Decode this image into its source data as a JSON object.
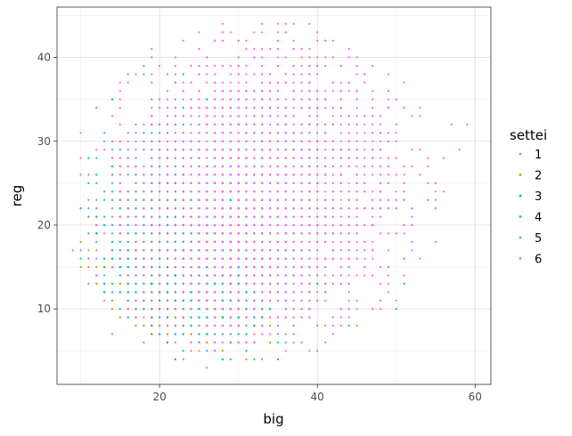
{
  "chart_data": {
    "type": "scatter",
    "title": "",
    "xlabel": "big",
    "ylabel": "reg",
    "xlim": [
      7,
      62
    ],
    "ylim": [
      1,
      46
    ],
    "x_ticks": [
      20,
      40,
      60
    ],
    "x_tick_labels": [
      "20",
      "40",
      "60"
    ],
    "x_minor_ticks": [
      10,
      30,
      50
    ],
    "y_ticks": [
      10,
      20,
      30,
      40
    ],
    "y_tick_labels": [
      "10",
      "20",
      "30",
      "40"
    ],
    "y_minor_ticks": [
      5,
      15,
      25,
      35,
      45
    ],
    "grid": true,
    "legend": {
      "title": "settei",
      "position": "right",
      "entries": [
        "1",
        "2",
        "3",
        "4",
        "5",
        "6"
      ],
      "colors": [
        "#F8766D",
        "#B79F00",
        "#00BA38",
        "#00BFC4",
        "#619CFF",
        "#F564E3"
      ]
    },
    "series": [
      {
        "name": "1",
        "color": "#F8766D",
        "center": [
          26,
          16
        ],
        "spread": [
          5,
          4
        ],
        "points": [
          [
            9,
            17
          ],
          [
            11,
            13
          ],
          [
            11,
            15
          ],
          [
            12,
            14
          ],
          [
            12,
            20
          ],
          [
            13,
            11
          ],
          [
            14,
            7
          ],
          [
            14,
            18
          ],
          [
            15,
            12
          ],
          [
            15,
            16
          ],
          [
            16,
            9
          ],
          [
            16,
            14
          ],
          [
            17,
            13
          ],
          [
            18,
            10
          ],
          [
            18,
            15
          ],
          [
            19,
            12
          ],
          [
            20,
            8
          ],
          [
            20,
            17
          ],
          [
            21,
            11
          ],
          [
            22,
            14
          ],
          [
            23,
            9
          ],
          [
            24,
            13
          ],
          [
            26,
            3
          ],
          [
            26,
            16
          ],
          [
            27,
            8
          ],
          [
            28,
            12
          ],
          [
            29,
            18
          ],
          [
            30,
            10
          ],
          [
            31,
            6
          ],
          [
            33,
            14
          ],
          [
            35,
            9
          ],
          [
            38,
            11
          ],
          [
            41,
            8
          ],
          [
            44,
            12
          ],
          [
            47,
            10
          ],
          [
            49,
            14
          ]
        ]
      },
      {
        "name": "2",
        "color": "#B79F00",
        "center": [
          25,
          13
        ],
        "spread": [
          5,
          4
        ],
        "points": [
          [
            11,
            16
          ],
          [
            12,
            19
          ],
          [
            12,
            13
          ],
          [
            13,
            12
          ],
          [
            13,
            24
          ],
          [
            14,
            15
          ],
          [
            14,
            10
          ],
          [
            15,
            13
          ],
          [
            15,
            9
          ],
          [
            16,
            11
          ],
          [
            17,
            8
          ],
          [
            17,
            14
          ],
          [
            18,
            6
          ],
          [
            18,
            12
          ],
          [
            19,
            9
          ],
          [
            19,
            16
          ],
          [
            20,
            11
          ],
          [
            21,
            7
          ],
          [
            21,
            13
          ],
          [
            22,
            10
          ],
          [
            23,
            4
          ],
          [
            23,
            15
          ],
          [
            24,
            8
          ],
          [
            25,
            12
          ],
          [
            25,
            6
          ],
          [
            26,
            10
          ],
          [
            27,
            5
          ],
          [
            28,
            13
          ],
          [
            29,
            8
          ],
          [
            30,
            11
          ],
          [
            31,
            4
          ],
          [
            32,
            9
          ],
          [
            34,
            12
          ],
          [
            36,
            7
          ],
          [
            38,
            10
          ],
          [
            40,
            5
          ],
          [
            42,
            9
          ],
          [
            45,
            8
          ],
          [
            48,
            11
          ]
        ]
      },
      {
        "name": "3",
        "color": "#00BA38",
        "center": [
          24,
          17
        ],
        "spread": [
          5,
          5
        ],
        "points": [
          [
            12,
            18
          ],
          [
            12,
            22
          ],
          [
            13,
            16
          ],
          [
            14,
            27
          ],
          [
            14,
            20
          ],
          [
            15,
            14
          ],
          [
            15,
            23
          ],
          [
            16,
            12
          ],
          [
            16,
            19
          ],
          [
            17,
            25
          ],
          [
            17,
            16
          ],
          [
            18,
            11
          ],
          [
            18,
            21
          ],
          [
            19,
            14
          ],
          [
            19,
            28
          ],
          [
            20,
            18
          ],
          [
            20,
            10
          ],
          [
            21,
            15
          ],
          [
            21,
            22
          ],
          [
            22,
            12
          ],
          [
            22,
            4
          ],
          [
            23,
            17
          ],
          [
            23,
            9
          ],
          [
            24,
            13
          ],
          [
            24,
            20
          ],
          [
            25,
            7
          ],
          [
            25,
            15
          ],
          [
            26,
            11
          ],
          [
            27,
            18
          ],
          [
            28,
            9
          ],
          [
            29,
            14
          ],
          [
            30,
            6
          ],
          [
            31,
            12
          ],
          [
            33,
            10
          ],
          [
            35,
            15
          ],
          [
            37,
            8
          ],
          [
            40,
            13
          ],
          [
            44,
            10
          ]
        ]
      },
      {
        "name": "4",
        "color": "#00BFC4",
        "center": [
          25,
          18
        ],
        "spread": [
          6,
          6
        ],
        "points": [
          [
            13,
            20
          ],
          [
            14,
            24
          ],
          [
            14,
            17
          ],
          [
            15,
            22
          ],
          [
            15,
            28
          ],
          [
            16,
            19
          ],
          [
            16,
            13
          ],
          [
            17,
            26
          ],
          [
            17,
            21
          ],
          [
            18,
            15
          ],
          [
            18,
            30
          ],
          [
            19,
            23
          ],
          [
            19,
            18
          ],
          [
            20,
            12
          ],
          [
            20,
            27
          ],
          [
            21,
            20
          ],
          [
            21,
            16
          ],
          [
            22,
            32
          ],
          [
            22,
            24
          ],
          [
            23,
            14
          ],
          [
            23,
            19
          ],
          [
            24,
            28
          ],
          [
            24,
            11
          ],
          [
            25,
            22
          ],
          [
            26,
            17
          ],
          [
            27,
            25
          ],
          [
            28,
            13
          ],
          [
            29,
            20
          ],
          [
            30,
            9
          ],
          [
            31,
            18
          ],
          [
            32,
            4
          ],
          [
            33,
            15
          ],
          [
            35,
            21
          ],
          [
            37,
            12
          ],
          [
            39,
            17
          ],
          [
            42,
            14
          ],
          [
            45,
            19
          ],
          [
            50,
            10
          ]
        ]
      },
      {
        "name": "5",
        "color": "#619CFF",
        "center": [
          25,
          21
        ],
        "spread": [
          6,
          6
        ],
        "points": [
          [
            13,
            21
          ],
          [
            14,
            19
          ],
          [
            15,
            24
          ],
          [
            15,
            16
          ],
          [
            16,
            28
          ],
          [
            16,
            22
          ],
          [
            17,
            18
          ],
          [
            17,
            31
          ],
          [
            18,
            25
          ],
          [
            18,
            20
          ],
          [
            19,
            40
          ],
          [
            19,
            34
          ],
          [
            19,
            23
          ],
          [
            20,
            17
          ],
          [
            20,
            29
          ],
          [
            21,
            21
          ],
          [
            21,
            26
          ],
          [
            22,
            15
          ],
          [
            22,
            33
          ],
          [
            23,
            19
          ],
          [
            23,
            24
          ],
          [
            24,
            13
          ],
          [
            24,
            30
          ],
          [
            25,
            22
          ],
          [
            26,
            17
          ],
          [
            26,
            27
          ],
          [
            27,
            20
          ],
          [
            28,
            14
          ],
          [
            29,
            25
          ],
          [
            30,
            19
          ],
          [
            31,
            11
          ],
          [
            32,
            23
          ],
          [
            34,
            16
          ],
          [
            36,
            21
          ],
          [
            38,
            12
          ],
          [
            41,
            18
          ],
          [
            44,
            15
          ],
          [
            47,
            20
          ]
        ]
      },
      {
        "name": "6",
        "color": "#F564E3",
        "center": [
          34,
          25
        ],
        "spread": [
          8,
          8
        ],
        "points": [
          [
            20,
            39
          ],
          [
            22,
            34
          ],
          [
            24,
            37
          ],
          [
            25,
            41
          ],
          [
            27,
            42
          ],
          [
            28,
            42
          ],
          [
            29,
            39
          ],
          [
            30,
            37
          ],
          [
            31,
            41
          ],
          [
            32,
            40
          ],
          [
            34,
            38
          ],
          [
            36,
            43
          ],
          [
            37,
            39
          ],
          [
            38,
            41
          ],
          [
            39,
            44
          ],
          [
            41,
            40
          ],
          [
            42,
            42
          ],
          [
            43,
            39
          ],
          [
            44,
            40
          ],
          [
            45,
            36
          ],
          [
            47,
            33
          ],
          [
            49,
            34
          ],
          [
            50,
            31
          ],
          [
            51,
            37
          ],
          [
            52,
            33
          ],
          [
            53,
            26
          ],
          [
            54,
            28
          ],
          [
            55,
            22
          ],
          [
            56,
            24
          ],
          [
            57,
            32
          ],
          [
            58,
            29
          ],
          [
            59,
            32
          ],
          [
            55,
            18
          ],
          [
            53,
            16
          ],
          [
            51,
            14
          ],
          [
            49,
            12
          ],
          [
            47,
            10
          ],
          [
            45,
            30
          ],
          [
            46,
            25
          ],
          [
            48,
            21
          ],
          [
            50,
            19
          ],
          [
            52,
            20
          ],
          [
            54,
            23
          ],
          [
            43,
            15
          ],
          [
            41,
            12
          ],
          [
            39,
            9
          ],
          [
            37,
            7
          ],
          [
            35,
            11
          ],
          [
            33,
            8
          ],
          [
            31,
            13
          ],
          [
            29,
            16
          ],
          [
            27,
            21
          ],
          [
            25,
            26
          ],
          [
            23,
            29
          ]
        ]
      }
    ]
  }
}
